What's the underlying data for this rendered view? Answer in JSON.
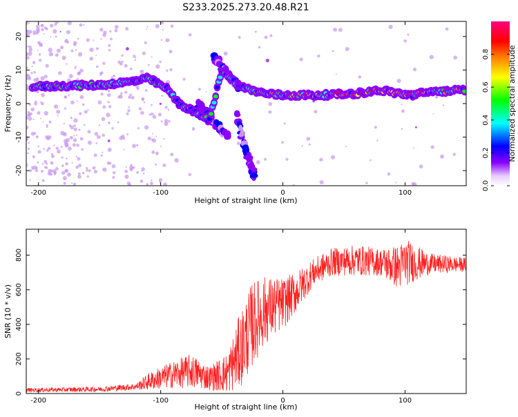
{
  "title": "S233.2025.273.20.48.R21",
  "chart_data": [
    {
      "id": "spectrogram",
      "type": "heatmap",
      "xlabel": "Height of straight line (km)",
      "ylabel": "Frequency (Hz)",
      "xlim": [
        -210,
        150
      ],
      "ylim": [
        -24.5,
        24.5
      ],
      "xticks": [
        -200,
        -100,
        0,
        100
      ],
      "xtick_labels": [
        "-200",
        "-100",
        "0",
        "100"
      ],
      "yticks": [
        -20,
        -10,
        0,
        10,
        20
      ],
      "ytick_labels": [
        "-20",
        "-10",
        "0",
        "10",
        "20"
      ],
      "colorbar": {
        "label": "Normalized spectral amplitude",
        "range": [
          0,
          1
        ],
        "ticks": [
          0.0,
          0.2,
          0.4,
          0.6,
          0.8
        ],
        "tick_labels": [
          "0.0",
          "0.2",
          "0.4",
          "0.6",
          "0.8"
        ],
        "colors": [
          "#ffffff",
          "#c896f0",
          "#8c00ff",
          "#0000ff",
          "#00ffff",
          "#00ff00",
          "#ffff00",
          "#ff8000",
          "#ff0000",
          "#ff0080"
        ]
      },
      "ridge": [
        {
          "x": -205,
          "y": 5.0
        },
        {
          "x": -180,
          "y": 5.3
        },
        {
          "x": -150,
          "y": 5.5
        },
        {
          "x": -125,
          "y": 6.5
        },
        {
          "x": -110,
          "y": 7.5
        },
        {
          "x": -95,
          "y": 4.5
        },
        {
          "x": -85,
          "y": 0.0
        },
        {
          "x": -75,
          "y": -2.0
        },
        {
          "x": -60,
          "y": -5.0
        },
        {
          "x": -50,
          "y": 10.0
        },
        {
          "x": -35,
          "y": 5.0
        },
        {
          "x": -15,
          "y": 3.0
        },
        {
          "x": 0,
          "y": 2.5
        },
        {
          "x": 30,
          "y": 2.5
        },
        {
          "x": 60,
          "y": 3.0
        },
        {
          "x": 80,
          "y": 4.0
        },
        {
          "x": 95,
          "y": 3.0
        },
        {
          "x": 105,
          "y": 2.5
        },
        {
          "x": 120,
          "y": 3.5
        },
        {
          "x": 150,
          "y": 4.0
        }
      ],
      "secondary_branches": [
        [
          {
            "x": -70,
            "y": 0.0
          },
          {
            "x": -55,
            "y": -6.0
          },
          {
            "x": -45,
            "y": -10.0
          }
        ],
        [
          {
            "x": -38,
            "y": -4.0
          },
          {
            "x": -30,
            "y": -14.0
          },
          {
            "x": -23,
            "y": -22.0
          }
        ],
        [
          {
            "x": -57,
            "y": 14.0
          },
          {
            "x": -45,
            "y": 9.0
          },
          {
            "x": -35,
            "y": 4.0
          }
        ]
      ]
    },
    {
      "id": "snr",
      "type": "line",
      "xlabel": "Height of straight line (km)",
      "ylabel": "SNR (10 * v/v)",
      "xlim": [
        -210,
        150
      ],
      "ylim": [
        0,
        950
      ],
      "xticks": [
        -200,
        -100,
        0,
        100
      ],
      "xtick_labels": [
        "-200",
        "-100",
        "0",
        "100"
      ],
      "yticks": [
        0,
        200,
        400,
        600,
        800
      ],
      "ytick_labels": [
        "0",
        "200",
        "400",
        "600",
        "800"
      ],
      "color": "#ff2020",
      "envelope": [
        {
          "x": -210,
          "mean": 20,
          "amp": 12
        },
        {
          "x": -150,
          "mean": 25,
          "amp": 15
        },
        {
          "x": -120,
          "mean": 40,
          "amp": 20
        },
        {
          "x": -110,
          "mean": 70,
          "amp": 50
        },
        {
          "x": -90,
          "mean": 110,
          "amp": 80
        },
        {
          "x": -75,
          "mean": 130,
          "amp": 100
        },
        {
          "x": -60,
          "mean": 90,
          "amp": 70
        },
        {
          "x": -45,
          "mean": 120,
          "amp": 120
        },
        {
          "x": -35,
          "mean": 250,
          "amp": 220
        },
        {
          "x": -25,
          "mean": 400,
          "amp": 250
        },
        {
          "x": -15,
          "mean": 480,
          "amp": 200
        },
        {
          "x": 0,
          "mean": 520,
          "amp": 150
        },
        {
          "x": 10,
          "mean": 580,
          "amp": 120
        },
        {
          "x": 25,
          "mean": 700,
          "amp": 80
        },
        {
          "x": 40,
          "mean": 760,
          "amp": 80
        },
        {
          "x": 60,
          "mean": 770,
          "amp": 90
        },
        {
          "x": 80,
          "mean": 760,
          "amp": 80
        },
        {
          "x": 95,
          "mean": 730,
          "amp": 130
        },
        {
          "x": 100,
          "mean": 760,
          "amp": 140
        },
        {
          "x": 120,
          "mean": 750,
          "amp": 60
        },
        {
          "x": 150,
          "mean": 745,
          "amp": 40
        }
      ]
    }
  ]
}
